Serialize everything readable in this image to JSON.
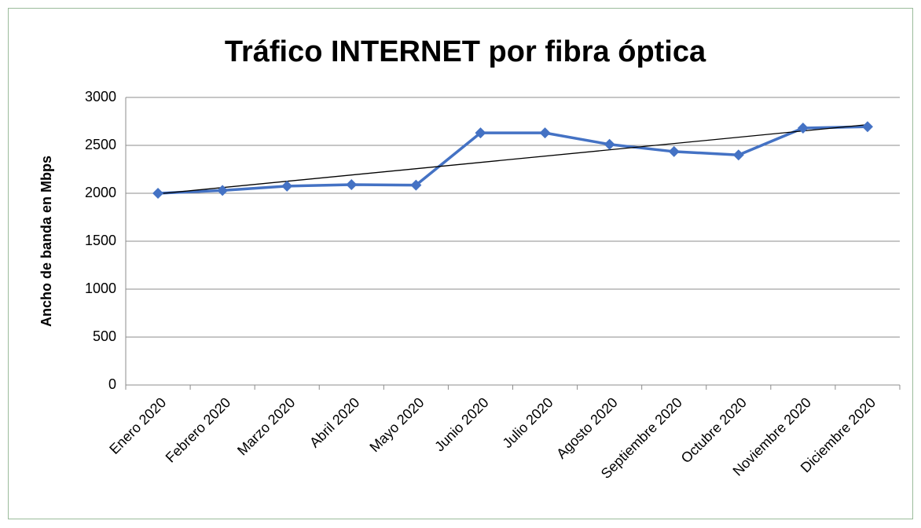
{
  "chart_data": {
    "type": "line",
    "title": "Tráfico INTERNET por fibra óptica",
    "y_label": "Ancho de banda en Mbps",
    "categories": [
      "Enero 2020",
      "Febrero 2020",
      "Marzo 2020",
      "Abril 2020",
      "Mayo 2020",
      "Junio 2020",
      "Julio 2020",
      "Agosto 2020",
      "Septiembre 2020",
      "Octubre 2020",
      "Noviembre 2020",
      "Diciembre 2020"
    ],
    "values": [
      2000,
      2030,
      2075,
      2090,
      2085,
      2630,
      2630,
      2510,
      2435,
      2400,
      2680,
      2695
    ],
    "color": "#4472c4",
    "marker": "diamond",
    "trendline": "linear",
    "trendline_color": "#000000",
    "ylim": [
      0,
      3000
    ],
    "yticks": [
      0,
      500,
      1000,
      1500,
      2000,
      2500,
      3000
    ],
    "grid": true
  }
}
